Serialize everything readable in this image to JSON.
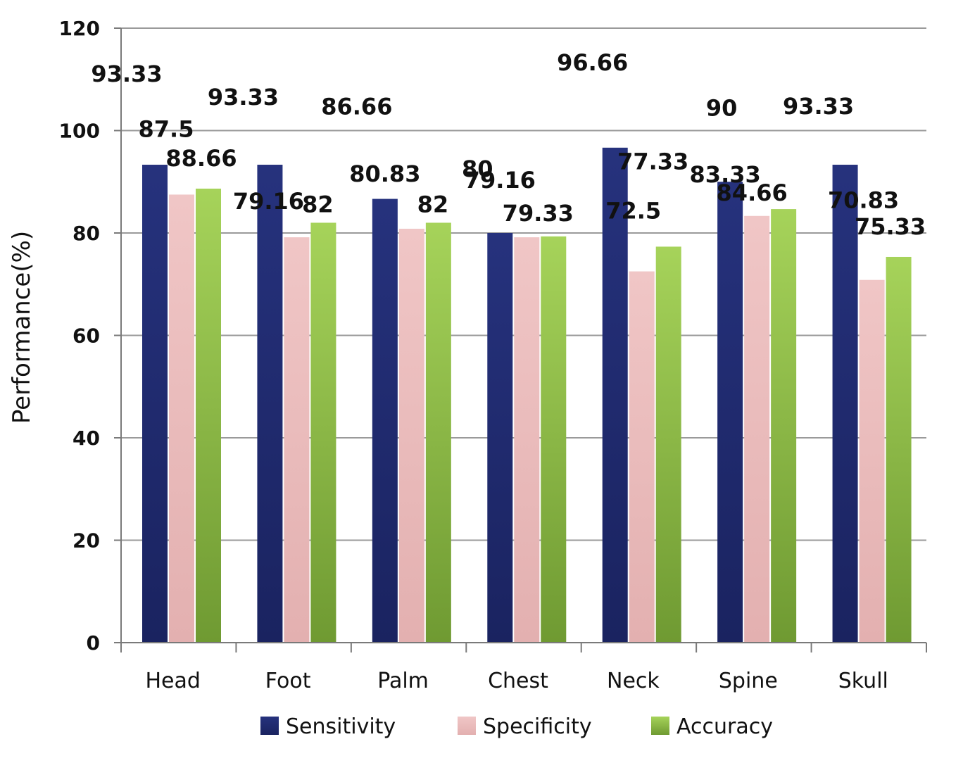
{
  "chart_data": {
    "type": "bar",
    "title": "",
    "xlabel": "",
    "ylabel": "Performance(%)",
    "ylim": [
      0,
      120
    ],
    "yticks": [
      0,
      20,
      40,
      60,
      80,
      100,
      120
    ],
    "grid": true,
    "legend_position": "bottom",
    "categories": [
      "Head",
      "Foot",
      "Palm",
      "Chest",
      "Neck",
      "Spine",
      "Skull"
    ],
    "series": [
      {
        "name": "Sensitivity",
        "color": "#1f2a6e",
        "values": [
          93.33,
          93.33,
          86.66,
          80,
          96.66,
          90,
          93.33
        ],
        "labels": [
          "93.33",
          "93.33",
          "86.66",
          "80",
          "96.66",
          "90",
          "93.33"
        ]
      },
      {
        "name": "Specificity",
        "color": "#e8b9b9",
        "values": [
          87.5,
          79.16,
          80.83,
          79.16,
          72.5,
          83.33,
          70.83
        ],
        "labels": [
          "87.5",
          "79.16",
          "80.83",
          "79.16",
          "72.5",
          "83.33",
          "70.83"
        ]
      },
      {
        "name": "Accuracy",
        "color": "#8fbf4a",
        "values": [
          88.66,
          82,
          82,
          79.33,
          77.33,
          84.66,
          75.33
        ],
        "labels": [
          "88.66",
          "82",
          "82",
          "79.33",
          "77.33",
          "84.66",
          "75.33"
        ]
      }
    ]
  }
}
